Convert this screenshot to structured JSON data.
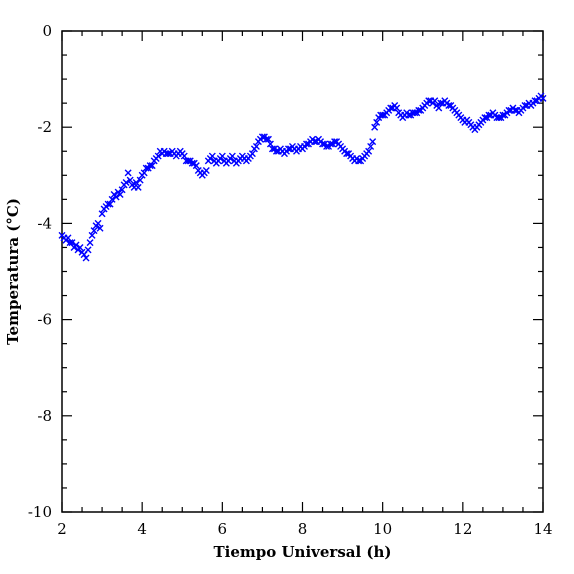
{
  "chart_data": {
    "type": "scatter",
    "xlabel": "Tiempo Universal (h)",
    "ylabel": "Temperatura (°C)",
    "xlim": [
      2,
      14
    ],
    "ylim": [
      -10,
      0
    ],
    "xticks": [
      2,
      4,
      6,
      8,
      10,
      12,
      14
    ],
    "yticks": [
      0,
      -2,
      -4,
      -6,
      -8,
      -10
    ],
    "x_minor_step": 0.5,
    "y_minor_step": 0.5,
    "marker": "x",
    "marker_color": "#0000ff",
    "grid": false,
    "series": [
      {
        "points": [
          [
            2.0,
            -4.25
          ],
          [
            2.05,
            -4.3
          ],
          [
            2.1,
            -4.35
          ],
          [
            2.15,
            -4.3
          ],
          [
            2.2,
            -4.4
          ],
          [
            2.25,
            -4.4
          ],
          [
            2.3,
            -4.5
          ],
          [
            2.35,
            -4.45
          ],
          [
            2.4,
            -4.55
          ],
          [
            2.45,
            -4.5
          ],
          [
            2.5,
            -4.6
          ],
          [
            2.55,
            -4.65
          ],
          [
            2.6,
            -4.72
          ],
          [
            2.65,
            -4.55
          ],
          [
            2.7,
            -4.4
          ],
          [
            2.75,
            -4.25
          ],
          [
            2.8,
            -4.15
          ],
          [
            2.85,
            -4.05
          ],
          [
            2.9,
            -4.0
          ],
          [
            2.95,
            -4.1
          ],
          [
            3.0,
            -3.8
          ],
          [
            3.05,
            -3.7
          ],
          [
            3.1,
            -3.65
          ],
          [
            3.15,
            -3.6
          ],
          [
            3.2,
            -3.6
          ],
          [
            3.25,
            -3.5
          ],
          [
            3.3,
            -3.4
          ],
          [
            3.35,
            -3.45
          ],
          [
            3.4,
            -3.35
          ],
          [
            3.45,
            -3.4
          ],
          [
            3.5,
            -3.3
          ],
          [
            3.55,
            -3.2
          ],
          [
            3.6,
            -3.15
          ],
          [
            3.65,
            -2.95
          ],
          [
            3.7,
            -3.1
          ],
          [
            3.75,
            -3.2
          ],
          [
            3.8,
            -3.25
          ],
          [
            3.85,
            -3.15
          ],
          [
            3.9,
            -3.25
          ],
          [
            3.95,
            -3.1
          ],
          [
            4.0,
            -3.0
          ],
          [
            4.05,
            -2.95
          ],
          [
            4.1,
            -2.85
          ],
          [
            4.15,
            -2.85
          ],
          [
            4.2,
            -2.8
          ],
          [
            4.25,
            -2.8
          ],
          [
            4.3,
            -2.7
          ],
          [
            4.35,
            -2.65
          ],
          [
            4.4,
            -2.6
          ],
          [
            4.45,
            -2.5
          ],
          [
            4.5,
            -2.55
          ],
          [
            4.55,
            -2.5
          ],
          [
            4.6,
            -2.55
          ],
          [
            4.65,
            -2.55
          ],
          [
            4.7,
            -2.55
          ],
          [
            4.75,
            -2.5
          ],
          [
            4.8,
            -2.55
          ],
          [
            4.85,
            -2.6
          ],
          [
            4.9,
            -2.55
          ],
          [
            4.95,
            -2.5
          ],
          [
            5.0,
            -2.55
          ],
          [
            5.05,
            -2.6
          ],
          [
            5.1,
            -2.7
          ],
          [
            5.15,
            -2.7
          ],
          [
            5.2,
            -2.7
          ],
          [
            5.25,
            -2.75
          ],
          [
            5.3,
            -2.75
          ],
          [
            5.35,
            -2.8
          ],
          [
            5.4,
            -2.9
          ],
          [
            5.45,
            -2.95
          ],
          [
            5.5,
            -3.0
          ],
          [
            5.55,
            -2.95
          ],
          [
            5.6,
            -2.9
          ],
          [
            5.65,
            -2.7
          ],
          [
            5.7,
            -2.65
          ],
          [
            5.75,
            -2.6
          ],
          [
            5.8,
            -2.7
          ],
          [
            5.85,
            -2.75
          ],
          [
            5.9,
            -2.7
          ],
          [
            5.95,
            -2.65
          ],
          [
            6.0,
            -2.6
          ],
          [
            6.05,
            -2.7
          ],
          [
            6.1,
            -2.75
          ],
          [
            6.15,
            -2.7
          ],
          [
            6.2,
            -2.65
          ],
          [
            6.25,
            -2.6
          ],
          [
            6.3,
            -2.7
          ],
          [
            6.35,
            -2.75
          ],
          [
            6.4,
            -2.7
          ],
          [
            6.45,
            -2.65
          ],
          [
            6.5,
            -2.6
          ],
          [
            6.55,
            -2.65
          ],
          [
            6.6,
            -2.7
          ],
          [
            6.65,
            -2.65
          ],
          [
            6.7,
            -2.6
          ],
          [
            6.75,
            -2.55
          ],
          [
            6.8,
            -2.45
          ],
          [
            6.85,
            -2.4
          ],
          [
            6.9,
            -2.3
          ],
          [
            6.95,
            -2.25
          ],
          [
            7.0,
            -2.2
          ],
          [
            7.05,
            -2.2
          ],
          [
            7.1,
            -2.25
          ],
          [
            7.15,
            -2.25
          ],
          [
            7.2,
            -2.35
          ],
          [
            7.25,
            -2.45
          ],
          [
            7.3,
            -2.45
          ],
          [
            7.35,
            -2.5
          ],
          [
            7.4,
            -2.5
          ],
          [
            7.45,
            -2.45
          ],
          [
            7.5,
            -2.5
          ],
          [
            7.55,
            -2.55
          ],
          [
            7.6,
            -2.5
          ],
          [
            7.65,
            -2.45
          ],
          [
            7.7,
            -2.45
          ],
          [
            7.75,
            -2.4
          ],
          [
            7.8,
            -2.45
          ],
          [
            7.85,
            -2.5
          ],
          [
            7.9,
            -2.45
          ],
          [
            7.95,
            -2.4
          ],
          [
            8.0,
            -2.45
          ],
          [
            8.05,
            -2.4
          ],
          [
            8.1,
            -2.35
          ],
          [
            8.15,
            -2.35
          ],
          [
            8.2,
            -2.3
          ],
          [
            8.25,
            -2.25
          ],
          [
            8.3,
            -2.3
          ],
          [
            8.35,
            -2.3
          ],
          [
            8.4,
            -2.25
          ],
          [
            8.45,
            -2.3
          ],
          [
            8.5,
            -2.35
          ],
          [
            8.55,
            -2.35
          ],
          [
            8.6,
            -2.4
          ],
          [
            8.65,
            -2.4
          ],
          [
            8.7,
            -2.35
          ],
          [
            8.75,
            -2.35
          ],
          [
            8.8,
            -2.3
          ],
          [
            8.85,
            -2.3
          ],
          [
            8.9,
            -2.35
          ],
          [
            8.95,
            -2.4
          ],
          [
            9.0,
            -2.45
          ],
          [
            9.05,
            -2.5
          ],
          [
            9.1,
            -2.55
          ],
          [
            9.15,
            -2.55
          ],
          [
            9.2,
            -2.6
          ],
          [
            9.25,
            -2.65
          ],
          [
            9.3,
            -2.7
          ],
          [
            9.35,
            -2.65
          ],
          [
            9.4,
            -2.7
          ],
          [
            9.45,
            -2.7
          ],
          [
            9.5,
            -2.65
          ],
          [
            9.55,
            -2.6
          ],
          [
            9.6,
            -2.55
          ],
          [
            9.65,
            -2.5
          ],
          [
            9.7,
            -2.4
          ],
          [
            9.75,
            -2.3
          ],
          [
            9.8,
            -2.0
          ],
          [
            9.85,
            -1.9
          ],
          [
            9.9,
            -1.8
          ],
          [
            9.95,
            -1.75
          ],
          [
            10.0,
            -1.75
          ],
          [
            10.05,
            -1.75
          ],
          [
            10.1,
            -1.7
          ],
          [
            10.15,
            -1.65
          ],
          [
            10.2,
            -1.6
          ],
          [
            10.25,
            -1.6
          ],
          [
            10.3,
            -1.55
          ],
          [
            10.35,
            -1.6
          ],
          [
            10.4,
            -1.7
          ],
          [
            10.45,
            -1.75
          ],
          [
            10.5,
            -1.8
          ],
          [
            10.55,
            -1.75
          ],
          [
            10.6,
            -1.7
          ],
          [
            10.65,
            -1.75
          ],
          [
            10.7,
            -1.75
          ],
          [
            10.75,
            -1.7
          ],
          [
            10.8,
            -1.7
          ],
          [
            10.85,
            -1.7
          ],
          [
            10.9,
            -1.65
          ],
          [
            10.95,
            -1.65
          ],
          [
            11.0,
            -1.6
          ],
          [
            11.05,
            -1.55
          ],
          [
            11.1,
            -1.5
          ],
          [
            11.15,
            -1.45
          ],
          [
            11.2,
            -1.45
          ],
          [
            11.25,
            -1.5
          ],
          [
            11.3,
            -1.45
          ],
          [
            11.35,
            -1.55
          ],
          [
            11.4,
            -1.6
          ],
          [
            11.45,
            -1.5
          ],
          [
            11.5,
            -1.5
          ],
          [
            11.55,
            -1.45
          ],
          [
            11.6,
            -1.5
          ],
          [
            11.65,
            -1.55
          ],
          [
            11.7,
            -1.55
          ],
          [
            11.75,
            -1.6
          ],
          [
            11.8,
            -1.65
          ],
          [
            11.85,
            -1.7
          ],
          [
            11.9,
            -1.75
          ],
          [
            11.95,
            -1.8
          ],
          [
            12.0,
            -1.85
          ],
          [
            12.05,
            -1.9
          ],
          [
            12.1,
            -1.85
          ],
          [
            12.15,
            -1.9
          ],
          [
            12.2,
            -1.95
          ],
          [
            12.25,
            -2.0
          ],
          [
            12.3,
            -2.05
          ],
          [
            12.35,
            -2.0
          ],
          [
            12.4,
            -1.95
          ],
          [
            12.45,
            -1.9
          ],
          [
            12.5,
            -1.85
          ],
          [
            12.55,
            -1.8
          ],
          [
            12.6,
            -1.8
          ],
          [
            12.65,
            -1.75
          ],
          [
            12.7,
            -1.75
          ],
          [
            12.75,
            -1.7
          ],
          [
            12.8,
            -1.75
          ],
          [
            12.85,
            -1.8
          ],
          [
            12.9,
            -1.8
          ],
          [
            12.95,
            -1.8
          ],
          [
            13.0,
            -1.75
          ],
          [
            13.05,
            -1.75
          ],
          [
            13.1,
            -1.7
          ],
          [
            13.15,
            -1.65
          ],
          [
            13.2,
            -1.65
          ],
          [
            13.25,
            -1.6
          ],
          [
            13.3,
            -1.65
          ],
          [
            13.35,
            -1.65
          ],
          [
            13.4,
            -1.7
          ],
          [
            13.45,
            -1.65
          ],
          [
            13.5,
            -1.6
          ],
          [
            13.55,
            -1.55
          ],
          [
            13.6,
            -1.55
          ],
          [
            13.65,
            -1.5
          ],
          [
            13.7,
            -1.55
          ],
          [
            13.75,
            -1.5
          ],
          [
            13.8,
            -1.45
          ],
          [
            13.85,
            -1.45
          ],
          [
            13.9,
            -1.4
          ],
          [
            13.95,
            -1.35
          ],
          [
            14.0,
            -1.4
          ]
        ]
      }
    ]
  }
}
